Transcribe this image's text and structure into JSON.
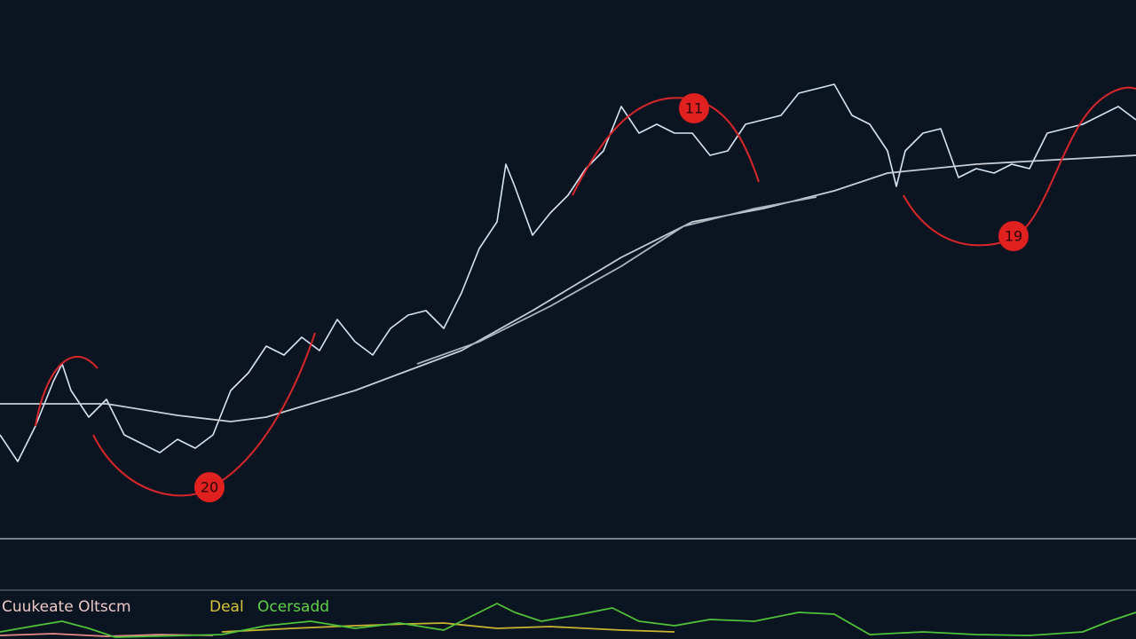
{
  "chart_data": [
    {
      "type": "line",
      "xlim": [
        0,
        1280
      ],
      "ylim": [
        0,
        600
      ],
      "series": [
        {
          "color": "#d6e6f5",
          "x": [
            0,
            20,
            40,
            60,
            70,
            80,
            100,
            120,
            140,
            160,
            180,
            200,
            220,
            240,
            260,
            280,
            300,
            320,
            340,
            360,
            380,
            400,
            420,
            440,
            460,
            480,
            500,
            520,
            540,
            560,
            570,
            580,
            600,
            620,
            640,
            660,
            680,
            700,
            720,
            740,
            760,
            780,
            800,
            820,
            840,
            860,
            880,
            900,
            920,
            940,
            960,
            980,
            1000,
            1010,
            1020,
            1040,
            1060,
            1080,
            1100,
            1120,
            1140,
            1160,
            1180,
            1200,
            1220,
            1240,
            1260,
            1280
          ],
          "values": [
            110,
            80,
            120,
            170,
            190,
            160,
            130,
            150,
            110,
            100,
            90,
            105,
            95,
            110,
            160,
            180,
            210,
            200,
            220,
            205,
            240,
            215,
            200,
            230,
            245,
            250,
            230,
            270,
            320,
            350,
            415,
            390,
            335,
            360,
            380,
            410,
            430,
            480,
            450,
            460,
            450,
            450,
            425,
            430,
            460,
            465,
            470,
            495,
            500,
            505,
            470,
            460,
            430,
            390,
            430,
            450,
            455,
            400,
            410,
            405,
            415,
            410,
            450,
            455,
            460,
            470,
            480,
            465
          ]
        },
        {
          "color": "#c9ced6",
          "x": [
            0,
            120,
            200,
            260,
            300,
            400,
            480,
            520,
            600,
            700,
            780,
            860,
            940,
            1000,
            1100,
            1280
          ],
          "values": [
            145,
            145,
            132,
            125,
            130,
            160,
            190,
            205,
            250,
            310,
            350,
            365,
            385,
            405,
            415,
            425
          ]
        },
        {
          "color": "#aeb4bd",
          "x": [
            470,
            540,
            620,
            700,
            770,
            850,
            920
          ],
          "values": [
            190,
            215,
            255,
            300,
            345,
            365,
            378
          ]
        }
      ],
      "annotations": [
        "11",
        "19",
        "20"
      ]
    },
    {
      "type": "line",
      "xlim": [
        0,
        1280
      ],
      "ylim": [
        0,
        60
      ],
      "series": [
        {
          "name": "Cuukeate Oltscm",
          "color": "#e88a8a",
          "x": [
            0,
            60,
            120,
            180,
            240
          ],
          "values": [
            4,
            6,
            3,
            5,
            4
          ]
        },
        {
          "name": "Deal",
          "color": "#c9b531",
          "x": [
            250,
            330,
            400,
            460,
            500,
            560,
            620,
            700,
            760
          ],
          "values": [
            8,
            12,
            15,
            17,
            18,
            12,
            14,
            10,
            8
          ]
        },
        {
          "name": "Ocersadd",
          "color": "#4fc23a",
          "x": [
            0,
            40,
            70,
            100,
            130,
            250,
            300,
            350,
            400,
            450,
            500,
            530,
            560,
            580,
            610,
            650,
            690,
            720,
            760,
            800,
            850,
            900,
            940,
            980,
            1040,
            1100,
            1160,
            1220,
            1250,
            1280
          ],
          "values": [
            8,
            15,
            20,
            12,
            2,
            5,
            15,
            20,
            12,
            18,
            10,
            25,
            40,
            30,
            20,
            27,
            35,
            20,
            15,
            22,
            20,
            30,
            28,
            5,
            8,
            5,
            4,
            8,
            20,
            30
          ]
        }
      ]
    }
  ]
}
